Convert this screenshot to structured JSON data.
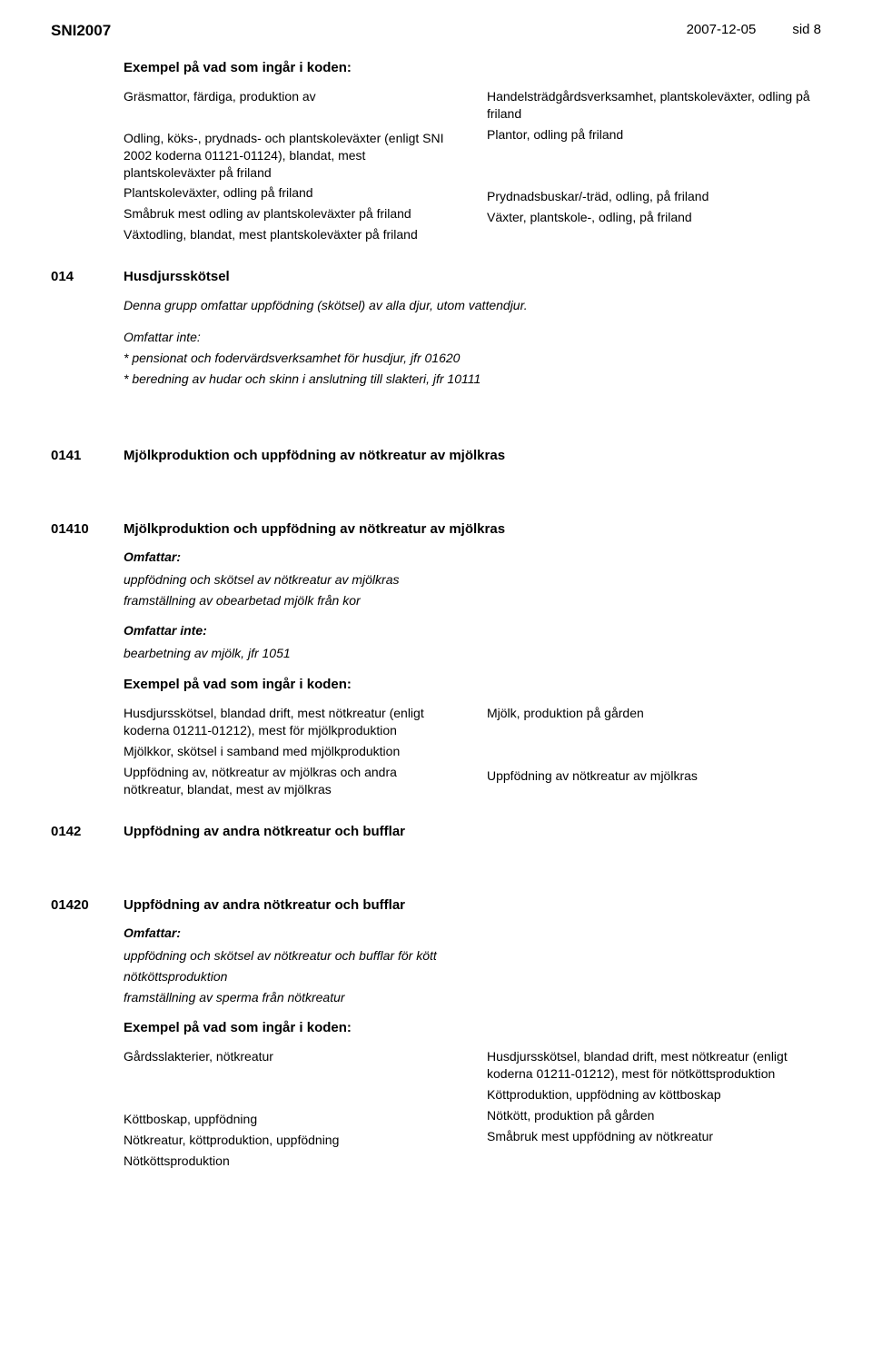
{
  "header": {
    "title": "SNI2007",
    "date": "2007-12-05",
    "page": "sid 8"
  },
  "section1": {
    "heading": "Exempel på vad som ingår i koden:",
    "left": [
      "Gräsmattor, färdiga, produktion av",
      "",
      "Odling, köks-, prydnads- och plantskoleväxter (enligt SNI 2002 koderna 01121-01124), blandat, mest plantskoleväxter på friland",
      "Plantskoleväxter, odling på friland",
      "Småbruk mest odling av plantskoleväxter på friland",
      "Växtodling, blandat, mest plantskoleväxter på friland"
    ],
    "right": [
      "Handelsträdgårdsverksamhet, plantskoleväxter, odling på friland",
      "Plantor, odling på friland",
      "",
      "",
      "Prydnadsbuskar/-träd, odling, på friland",
      "Växter, plantskole-, odling, på friland"
    ]
  },
  "code014": {
    "num": "014",
    "title": "Husdjursskötsel",
    "desc": "Denna grupp omfattar uppfödning (skötsel) av alla djur, utom vattendjur.",
    "excl_heading": "Omfattar inte:",
    "excl": [
      "* pensionat och fodervärdsverksamhet för husdjur, jfr 01620",
      "* beredning av hudar och skinn i anslutning till slakteri, jfr 10111"
    ]
  },
  "code0141": {
    "num": "0141",
    "title": "Mjölkproduktion och uppfödning av nötkreatur av mjölkras"
  },
  "code01410": {
    "num": "01410",
    "title": "Mjölkproduktion och uppfödning av nötkreatur av mjölkras",
    "incl_heading": "Omfattar:",
    "incl": [
      "uppfödning och skötsel av nötkreatur av mjölkras",
      "framställning av obearbetad mjölk från kor"
    ],
    "excl_heading": "Omfattar inte:",
    "excl": [
      "bearbetning av mjölk, jfr 1051"
    ],
    "examples_heading": "Exempel på vad som ingår i koden:",
    "left": [
      "Husdjursskötsel, blandad drift, mest nötkreatur (enligt koderna 01211-01212), mest för mjölkproduktion",
      "Mjölkkor, skötsel i samband med mjölkproduktion",
      "Uppfödning av, nötkreatur av mjölkras och andra nötkreatur, blandat, mest av mjölkras"
    ],
    "right": [
      "Mjölk, produktion på gården",
      "",
      "",
      "Uppfödning av nötkreatur av mjölkras"
    ]
  },
  "code0142": {
    "num": "0142",
    "title": "Uppfödning av andra nötkreatur och bufflar"
  },
  "code01420": {
    "num": "01420",
    "title": "Uppfödning av andra nötkreatur och bufflar",
    "incl_heading": "Omfattar:",
    "incl": [
      "uppfödning och skötsel av nötkreatur och bufflar för kött",
      "nötköttsproduktion",
      "framställning av sperma från nötkreatur"
    ],
    "examples_heading": "Exempel på vad som ingår i koden:",
    "left": [
      "Gårdsslakterier, nötkreatur",
      "",
      "",
      "Köttboskap, uppfödning",
      "Nötkreatur, köttproduktion, uppfödning",
      "Nötköttsproduktion"
    ],
    "right": [
      "Husdjursskötsel, blandad drift, mest nötkreatur (enligt koderna 01211-01212), mest för nötköttsproduktion",
      "Köttproduktion, uppfödning av köttboskap",
      "Nötkött, produktion på gården",
      "Småbruk mest uppfödning av nötkreatur"
    ]
  }
}
